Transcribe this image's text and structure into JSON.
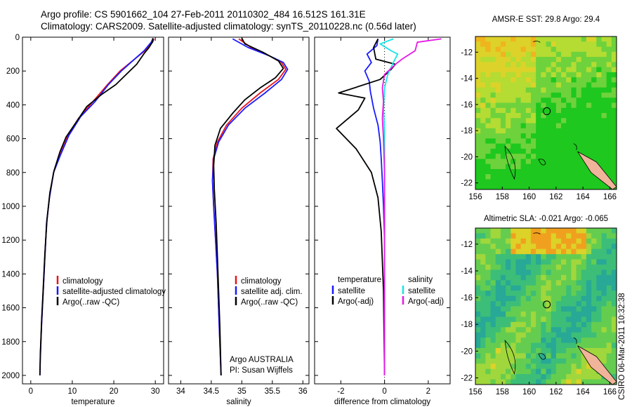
{
  "title_line1": "Argo profile: CS 5901662_104 27-Feb-2011 20110302_484 16.512S 161.31E",
  "title_line2": "Climatology: CARS2009. Satellite-adjusted climatology: synTS_20110228.nc (0.56d later)",
  "credit": "CSIRO 06-Mar-2011 10:32:38",
  "colors": {
    "climatology": "#e8141e",
    "satellite": "#1a1aff",
    "argo": "#000000",
    "salinity_sat": "#19e6e6",
    "salinity_argo": "#e619e6"
  },
  "chart_data": [
    {
      "type": "line",
      "id": "temperature",
      "xlabel": "temperature",
      "xlim": [
        -2,
        32
      ],
      "ylim": [
        2050,
        0
      ],
      "xticks": [
        0,
        10,
        20,
        30
      ],
      "yticks": [
        0,
        200,
        400,
        600,
        800,
        1000,
        1200,
        1400,
        1600,
        1800,
        2000
      ],
      "legend": {
        "position": "lower-right",
        "entries": [
          "climatology",
          "satellite-adjusted climatology",
          "Argo(..raw -QC)"
        ]
      },
      "series": [
        {
          "name": "climatology",
          "color_key": "climatology",
          "x": [
            29.7,
            29.3,
            27.5,
            25.0,
            21.5,
            18.5,
            15.0,
            11.5,
            9.0,
            7.0,
            5.5,
            4.5,
            3.8,
            3.4,
            3.0,
            2.6,
            2.3
          ],
          "y": [
            10,
            30,
            80,
            130,
            200,
            280,
            380,
            480,
            580,
            700,
            800,
            950,
            1100,
            1300,
            1500,
            1700,
            1880
          ]
        },
        {
          "name": "satellite-adjusted climatology",
          "color_key": "satellite",
          "x": [
            29.4,
            29.0,
            27.3,
            25.0,
            21.8,
            18.7,
            15.5,
            12.0,
            9.2,
            7.1,
            5.5,
            4.5,
            3.8,
            3.4,
            3.0,
            2.6,
            2.3,
            2.2
          ],
          "y": [
            10,
            30,
            80,
            130,
            200,
            280,
            380,
            470,
            580,
            700,
            800,
            950,
            1100,
            1300,
            1500,
            1700,
            1900,
            2000
          ]
        },
        {
          "name": "Argo(..raw -QC)",
          "color_key": "argo",
          "x": [
            29.4,
            29.4,
            28.5,
            27.2,
            25.5,
            23.0,
            20.5,
            17.0,
            13.5,
            11.0,
            8.5,
            7.0,
            5.6,
            4.6,
            3.9,
            3.4,
            3.0,
            2.6,
            2.3,
            2.2
          ],
          "y": [
            5,
            25,
            60,
            100,
            160,
            220,
            280,
            340,
            410,
            500,
            590,
            680,
            790,
            920,
            1080,
            1280,
            1480,
            1680,
            1880,
            2000
          ]
        }
      ]
    },
    {
      "type": "line",
      "id": "salinity",
      "xlabel": "salinity",
      "xlim": [
        33.8,
        36.1
      ],
      "ylim": [
        2050,
        0
      ],
      "xticks": [
        34,
        34.5,
        35,
        35.5,
        36
      ],
      "legend": {
        "position": "lower-right",
        "entries": [
          "climatology",
          "satellite adj. clim.",
          "Argo(..raw -QC)"
        ]
      },
      "annotation_lines": [
        "Argo AUSTRALIA",
        "PI: Susan Wijffels"
      ],
      "series": [
        {
          "name": "climatology",
          "color_key": "climatology",
          "x": [
            34.95,
            35.15,
            35.45,
            35.65,
            35.72,
            35.6,
            35.3,
            35.0,
            34.75,
            34.6,
            34.53,
            34.52,
            34.54,
            34.57,
            34.6,
            34.62,
            34.64,
            34.66
          ],
          "y": [
            10,
            60,
            110,
            150,
            190,
            250,
            330,
            420,
            520,
            620,
            720,
            850,
            1000,
            1200,
            1400,
            1600,
            1800,
            2000
          ]
        },
        {
          "name": "satellite adj. clim.",
          "color_key": "satellite",
          "x": [
            34.85,
            35.1,
            35.45,
            35.68,
            35.75,
            35.65,
            35.38,
            35.05,
            34.78,
            34.62,
            34.54,
            34.52,
            34.54,
            34.57,
            34.6,
            34.62,
            34.64,
            34.66
          ],
          "y": [
            10,
            60,
            110,
            150,
            190,
            250,
            330,
            420,
            520,
            620,
            720,
            850,
            1000,
            1200,
            1400,
            1600,
            1800,
            2000
          ]
        },
        {
          "name": "Argo(..raw -QC)",
          "color_key": "argo",
          "x": [
            35.0,
            35.05,
            35.35,
            35.6,
            35.68,
            35.55,
            35.3,
            35.05,
            34.85,
            34.65,
            34.56,
            34.54,
            34.55,
            34.58,
            34.6,
            34.62,
            34.64,
            34.66
          ],
          "y": [
            5,
            40,
            90,
            140,
            185,
            240,
            300,
            370,
            450,
            540,
            640,
            760,
            900,
            1100,
            1300,
            1500,
            1700,
            2000
          ]
        }
      ]
    },
    {
      "type": "line",
      "id": "difference",
      "xlabel": "difference from climatology",
      "xlim": [
        -3.2,
        3.0
      ],
      "ylim": [
        2050,
        0
      ],
      "xticks": [
        -2,
        0,
        2
      ],
      "legend": {
        "position": "lower-center",
        "left": {
          "title": "temperature",
          "entries": [
            "satellite",
            "Argo(-adj)"
          ]
        },
        "right": {
          "title": "salinity",
          "entries": [
            "satellite",
            "Argo(-adj)"
          ]
        }
      },
      "series": [
        {
          "name": "temperature satellite",
          "color_key": "satellite",
          "x": [
            -0.3,
            -0.35,
            -0.8,
            -0.6,
            -0.9,
            -0.7,
            -0.65,
            -0.5,
            -0.3,
            -0.2,
            -0.15,
            -0.1,
            -0.05,
            0.0,
            0.0,
            0.0
          ],
          "y": [
            10,
            50,
            100,
            150,
            200,
            260,
            320,
            420,
            520,
            620,
            720,
            850,
            1000,
            1200,
            1600,
            2000
          ]
        },
        {
          "name": "temperature Argo(-adj)",
          "color_key": "argo",
          "x": [
            -0.3,
            -0.5,
            -0.4,
            0.5,
            0.3,
            -0.2,
            -2.1,
            -0.9,
            -1.2,
            -2.2,
            -1.3,
            -0.6,
            -0.3,
            -0.15,
            -0.05,
            0.0
          ],
          "y": [
            10,
            60,
            130,
            160,
            190,
            250,
            330,
            360,
            430,
            540,
            660,
            800,
            950,
            1150,
            1500,
            2000
          ]
        },
        {
          "name": "salinity satellite",
          "color_key": "salinity_sat",
          "x": [
            0.4,
            -0.2,
            0.3,
            0.6,
            0.4,
            0.15,
            0.0,
            -0.05,
            0.0,
            0.0,
            0.0,
            0.0
          ],
          "y": [
            10,
            40,
            80,
            100,
            150,
            220,
            300,
            420,
            560,
            800,
            1200,
            2000
          ]
        },
        {
          "name": "salinity Argo(-adj)",
          "color_key": "salinity_argo",
          "x": [
            2.6,
            1.5,
            1.4,
            0.8,
            0.5,
            0.0,
            -0.1,
            -0.05,
            -0.1,
            -0.05,
            0.0,
            0.0,
            0.0
          ],
          "y": [
            10,
            30,
            80,
            130,
            160,
            220,
            300,
            380,
            480,
            600,
            800,
            1200,
            2000
          ]
        }
      ]
    },
    {
      "type": "heatmap",
      "id": "sst-map",
      "title": "AMSR-E SST: 29.8 Argo: 29.4",
      "xlim": [
        156,
        166.5
      ],
      "ylim": [
        -22.5,
        -10.8
      ],
      "xticks": [
        156,
        158,
        160,
        162,
        164,
        166
      ],
      "yticks": [
        -12,
        -14,
        -16,
        -18,
        -20,
        -22
      ],
      "argo_position": {
        "lon": 161.31,
        "lat": -16.512
      },
      "palette": [
        "#1ec81e",
        "#6ed23c",
        "#b4dc32",
        "#dcd22a",
        "#f0b41e",
        "#f08c1e"
      ]
    },
    {
      "type": "heatmap",
      "id": "sla-map",
      "title": "Altimetric SLA: -0.021 Argo: -0.065",
      "xlim": [
        156,
        166.5
      ],
      "ylim": [
        -22.5,
        -10.8
      ],
      "xticks": [
        156,
        158,
        160,
        162,
        164,
        166
      ],
      "yticks": [
        -12,
        -14,
        -16,
        -18,
        -20,
        -22
      ],
      "argo_position": {
        "lon": 161.31,
        "lat": -16.512
      },
      "palette": [
        "#28a896",
        "#3cbe78",
        "#64cd50",
        "#a0d73c",
        "#dcd228",
        "#f0a01e"
      ]
    }
  ]
}
